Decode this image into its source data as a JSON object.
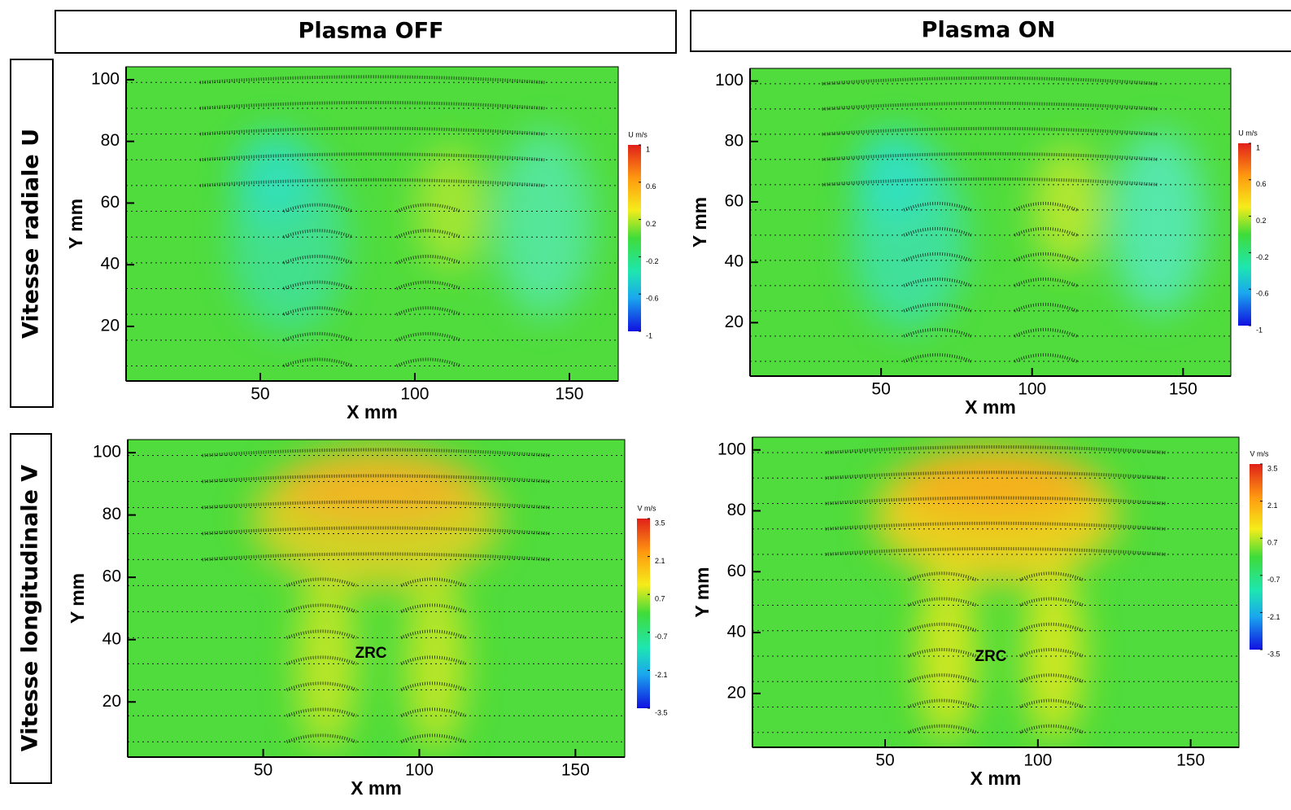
{
  "headers": {
    "columns": [
      "Plasma OFF",
      "Plasma ON"
    ],
    "rows": [
      "Vitesse radiale U",
      "Vitesse longitudinale V"
    ]
  },
  "chart_data": [
    {
      "type": "contour",
      "xlabel": "X mm",
      "ylabel": "Y mm",
      "xlim": [
        6.6,
        165.8
      ],
      "ylim": [
        2.3,
        104.2
      ],
      "xticks": [
        50,
        100,
        150
      ],
      "yticks": [
        20,
        40,
        60,
        80,
        100
      ],
      "colorbar": {
        "title": "U m/s",
        "lim": [
          -1,
          1
        ],
        "ticks": [
          1,
          0.6,
          0.2,
          -0.2,
          -0.6,
          -1
        ]
      }
    },
    {
      "type": "contour",
      "xlabel": "X mm",
      "ylabel": "Y mm",
      "xlim": [
        6.6,
        165.8
      ],
      "ylim": [
        2.3,
        104.2
      ],
      "xticks": [
        50,
        100,
        150
      ],
      "yticks": [
        20,
        40,
        60,
        80,
        100
      ],
      "colorbar": {
        "title": "U m/s",
        "lim": [
          -1,
          1
        ],
        "ticks": [
          1,
          0.6,
          0.2,
          -0.2,
          -0.6,
          -1
        ]
      }
    },
    {
      "type": "contour",
      "xlabel": "X mm",
      "ylabel": "Y mm",
      "xlim": [
        6.6,
        165.8
      ],
      "ylim": [
        2.3,
        104.2
      ],
      "xticks": [
        50,
        100,
        150
      ],
      "yticks": [
        20,
        40,
        60,
        80,
        100
      ],
      "colorbar": {
        "title": "V m/s",
        "lim": [
          -3.5,
          3.5
        ],
        "ticks": [
          3.5,
          2.1,
          0.7,
          -0.7,
          -2.1,
          -3.5
        ]
      },
      "annotation": "ZRC"
    },
    {
      "type": "contour",
      "xlabel": "X mm",
      "ylabel": "Y mm",
      "xlim": [
        6.6,
        165.8
      ],
      "ylim": [
        2.3,
        104.2
      ],
      "xticks": [
        50,
        100,
        150
      ],
      "yticks": [
        20,
        40,
        60,
        80,
        100
      ],
      "colorbar": {
        "title": "V m/s",
        "lim": [
          -3.5,
          3.5
        ],
        "ticks": [
          3.5,
          2.1,
          0.7,
          -0.7,
          -2.1,
          -3.5
        ]
      },
      "annotation": "ZRC"
    }
  ]
}
